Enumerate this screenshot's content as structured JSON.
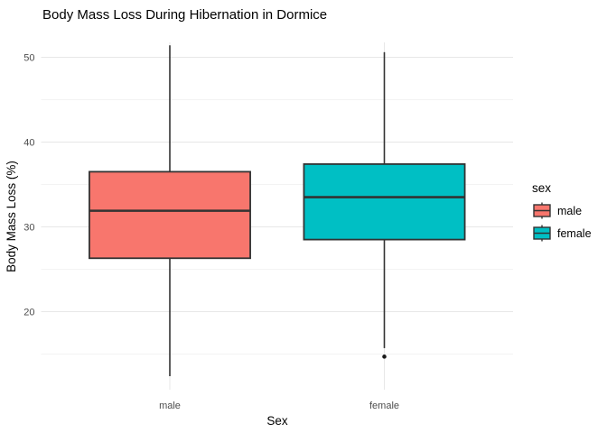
{
  "chart_data": {
    "type": "boxplot",
    "title": "Body Mass Loss During Hibernation in Dormice",
    "xlabel": "Sex",
    "ylabel": "Body Mass Loss (%)",
    "categories": [
      "male",
      "female"
    ],
    "series": [
      {
        "name": "male",
        "color": "#F8766D",
        "min": 12.4,
        "q1": 26.3,
        "median": 31.9,
        "q3": 36.5,
        "max": 51.4,
        "outliers": []
      },
      {
        "name": "female",
        "color": "#00BFC4",
        "min": 15.7,
        "q1": 28.5,
        "median": 33.5,
        "q3": 37.4,
        "max": 50.6,
        "outliers": [
          14.7
        ]
      }
    ],
    "y_axis": {
      "ticks_major": [
        20,
        30,
        40,
        50
      ],
      "ticks_minor": [
        15,
        25,
        35,
        45
      ],
      "ylim": [
        10.8,
        51.75
      ],
      "grid": true
    },
    "x_axis": {
      "tick_labels": [
        "male",
        "female"
      ]
    },
    "legend": {
      "title": "sex",
      "position": "right",
      "entries": [
        {
          "label": "male",
          "color": "#F8766D"
        },
        {
          "label": "female",
          "color": "#00BFC4"
        }
      ]
    },
    "styles": {
      "box_border": "#333333",
      "whisker_color": "#333333",
      "outlier_color": "#1a1a1a",
      "grid_major": "#e7e7e7",
      "grid_minor": "#f3f3f3",
      "tick_label_color": "#4d4d4d",
      "text_color": "#000000",
      "background": "#ffffff"
    }
  }
}
